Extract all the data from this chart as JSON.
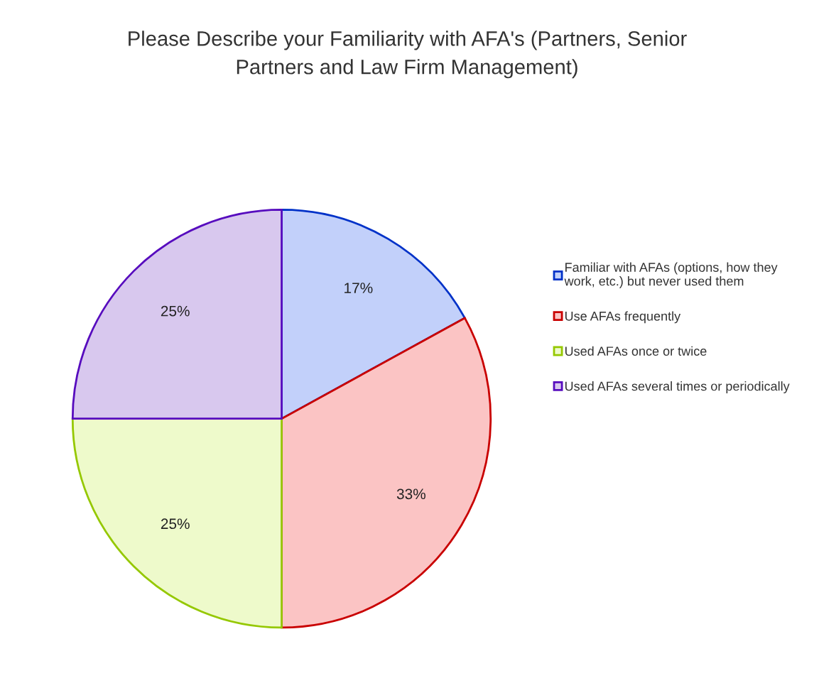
{
  "chart_data": {
    "type": "pie",
    "title": "Please Describe your Familiarity with AFA's (Partners, Senior\nPartners and Law Firm Management)",
    "categories": [
      "Familiar with AFAs (options, how they\nwork, etc.) but never used them",
      "Use AFAs frequently",
      "Used AFAs once or twice",
      "Used AFAs several times or periodically"
    ],
    "values": [
      17,
      33,
      25,
      25
    ],
    "value_labels": [
      "17%",
      "33%",
      "25%",
      "25%"
    ],
    "colors": [
      "#c2d0fa",
      "#fbc4c4",
      "#eefacb",
      "#d8c8ee"
    ],
    "legend": "right"
  }
}
